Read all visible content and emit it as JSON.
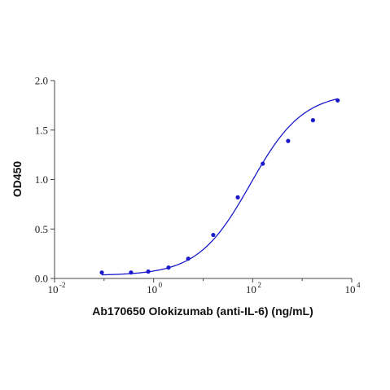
{
  "chart_data": {
    "type": "scatter",
    "title": "",
    "xlabel": "Ab170650 Olokizumab (anti-IL-6) (ng/mL)",
    "ylabel": "OD450",
    "x_scale": "log10",
    "xlim": [
      0.01,
      10000
    ],
    "ylim": [
      0,
      2.0
    ],
    "x_ticks": [
      {
        "base": "10",
        "exp": "-2"
      },
      {
        "base": "10",
        "exp": "0"
      },
      {
        "base": "10",
        "exp": "2"
      },
      {
        "base": "10",
        "exp": "4"
      }
    ],
    "y_ticks": [
      "0.0",
      "0.5",
      "1.0",
      "1.5",
      "2.0"
    ],
    "grid": false,
    "legend": "none",
    "series": [
      {
        "style": "points",
        "color": "#1a1acc",
        "x": [
          0.09,
          0.35,
          0.78,
          2.0,
          5.0,
          16.0,
          50.0,
          160.0,
          520.0,
          1650.0,
          5200.0
        ],
        "y": [
          0.06,
          0.06,
          0.07,
          0.11,
          0.2,
          0.44,
          0.82,
          1.16,
          1.39,
          1.6,
          1.8
        ]
      },
      {
        "style": "curve",
        "fit": "4PL",
        "color": "#1a1acc",
        "params": {
          "bottom": 0.03,
          "top": 1.88,
          "ec50": 90,
          "hill": 0.82
        },
        "x_range": [
          0.09,
          5200
        ]
      }
    ]
  }
}
